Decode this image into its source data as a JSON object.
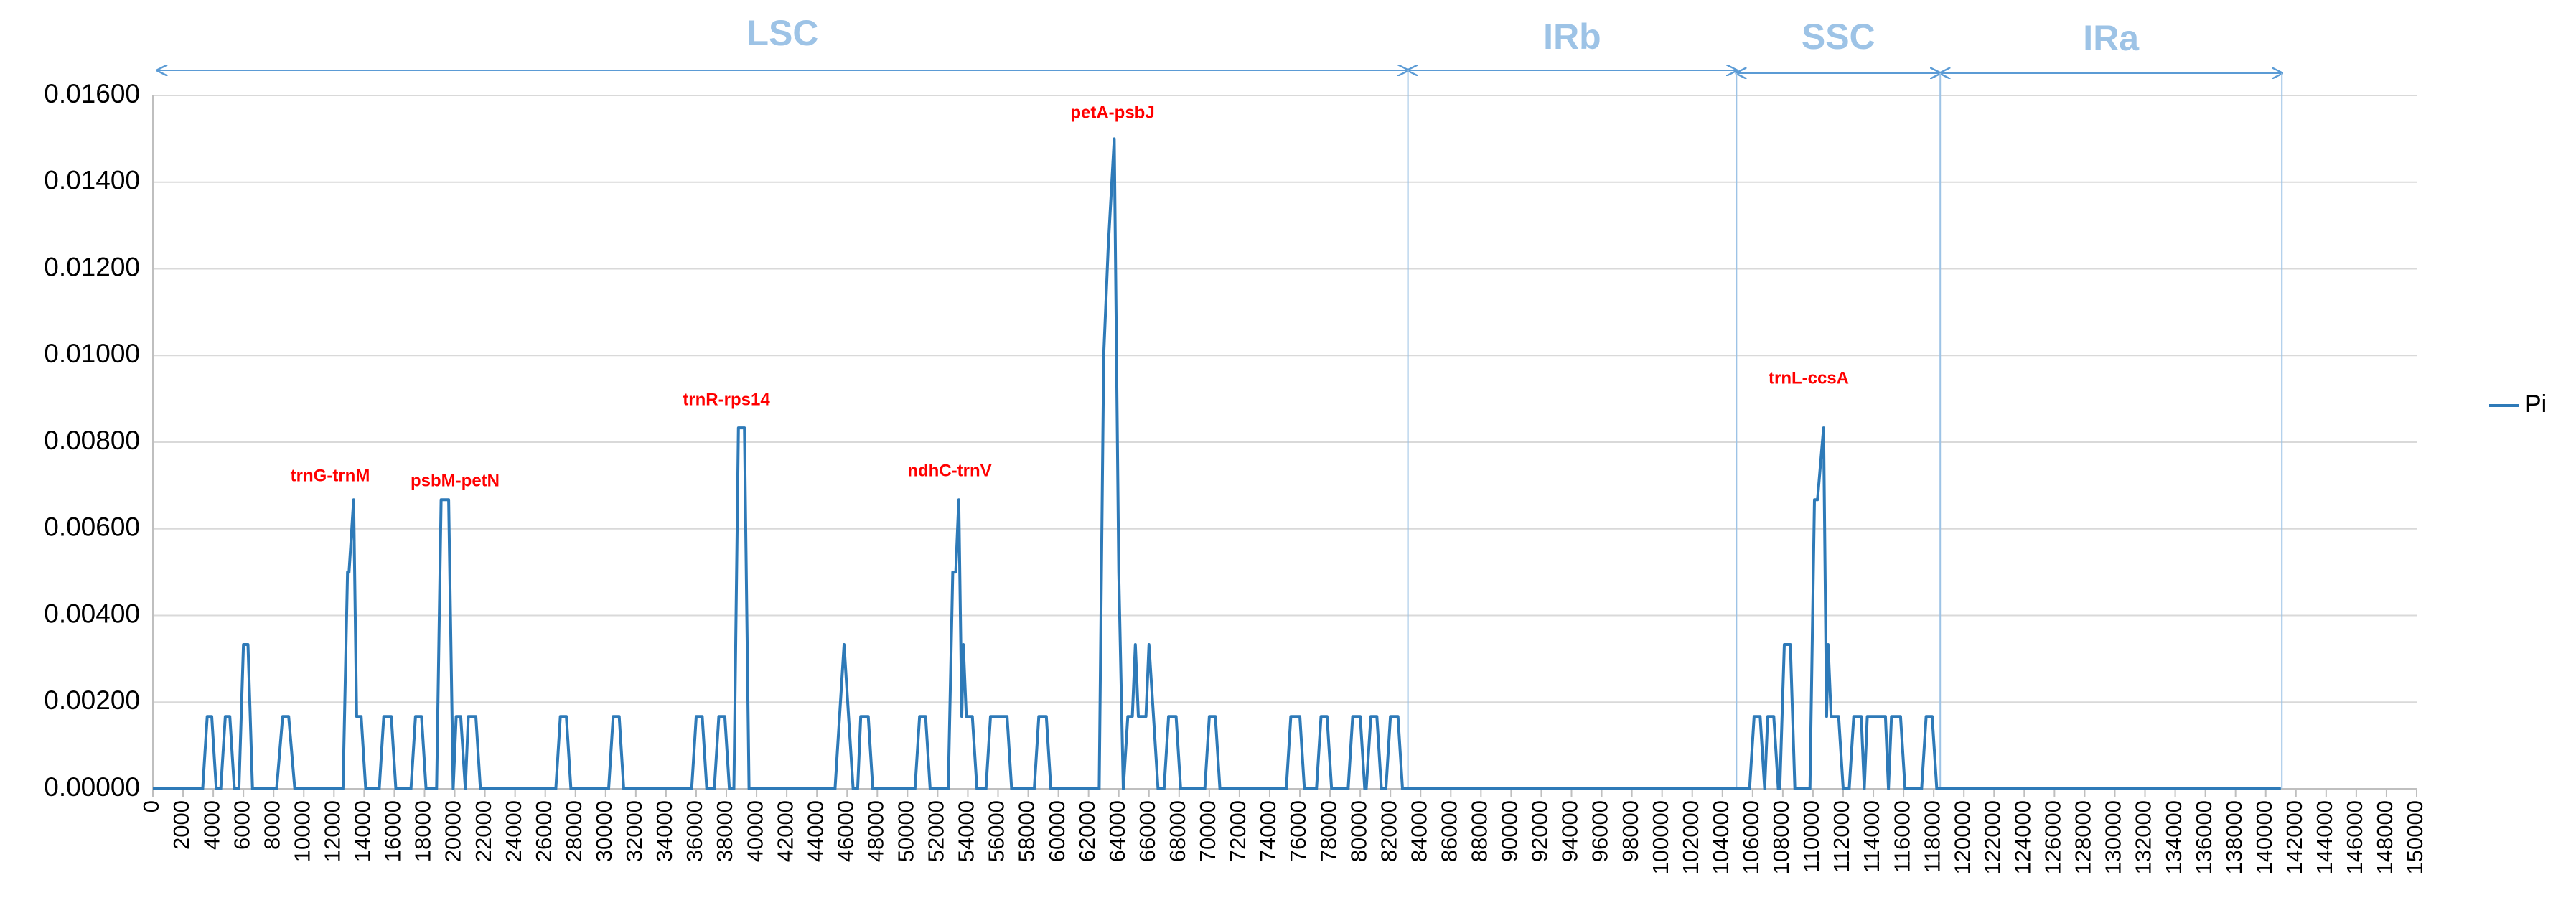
{
  "chart_data": {
    "type": "line",
    "x": [
      0,
      3300,
      3600,
      3900,
      4200,
      4500,
      4800,
      5100,
      5400,
      5700,
      6000,
      6300,
      6600,
      8200,
      8600,
      9000,
      9400,
      12600,
      12900,
      13000,
      13300,
      13500,
      13800,
      14100,
      15000,
      15300,
      15800,
      16100,
      17100,
      17400,
      17800,
      18100,
      18800,
      19100,
      19600,
      19900,
      20100,
      20400,
      20700,
      20900,
      21400,
      21700,
      26700,
      27000,
      27400,
      27700,
      30200,
      30500,
      30900,
      31200,
      35700,
      36000,
      36400,
      36700,
      37200,
      37500,
      37900,
      38200,
      38500,
      38800,
      39200,
      39500,
      45200,
      45500,
      45800,
      46100,
      46400,
      46700,
      46900,
      47400,
      47700,
      50500,
      50800,
      51200,
      51500,
      52700,
      53000,
      53200,
      53400,
      53600,
      53700,
      53900,
      54300,
      54600,
      55200,
      55500,
      56600,
      56900,
      58400,
      58700,
      59200,
      59500,
      62700,
      63000,
      63300,
      63700,
      64000,
      64300,
      64600,
      64900,
      65100,
      65300,
      65800,
      66000,
      66300,
      66600,
      67000,
      67300,
      67800,
      68100,
      69700,
      70000,
      70400,
      70700,
      75100,
      75400,
      76000,
      76300,
      77100,
      77400,
      77800,
      78100,
      79200,
      79500,
      80000,
      80300,
      80400,
      80700,
      81100,
      81400,
      81700,
      82000,
      82500,
      82800,
      105800,
      106100,
      106500,
      106800,
      107000,
      107400,
      107700,
      107800,
      108100,
      108500,
      108800,
      109800,
      110100,
      110300,
      110700,
      110900,
      111000,
      111200,
      111700,
      112000,
      112400,
      112700,
      113200,
      113400,
      113600,
      114800,
      115000,
      115200,
      115800,
      116100,
      117200,
      117500,
      117900,
      118200,
      141000
    ],
    "series": [
      {
        "name": "Pi",
        "color": "#2e7ab8",
        "values": [
          0,
          0,
          0.00167,
          0.00167,
          0,
          0,
          0.00167,
          0.00167,
          0,
          0,
          0.00333,
          0.00333,
          0,
          0,
          0.00167,
          0.00167,
          0,
          0,
          0.005,
          0.005,
          0.00667,
          0.00167,
          0.00167,
          0,
          0,
          0.00167,
          0.00167,
          0,
          0,
          0.00167,
          0.00167,
          0,
          0,
          0.00667,
          0.00667,
          0,
          0.00167,
          0.00167,
          0,
          0.00167,
          0.00167,
          0,
          0,
          0.00167,
          0.00167,
          0,
          0,
          0.00167,
          0.00167,
          0,
          0,
          0.00167,
          0.00167,
          0,
          0,
          0.00167,
          0.00167,
          0,
          0,
          0.00833,
          0.00833,
          0,
          0,
          0.00167,
          0.00333,
          0.00167,
          0,
          0,
          0.00167,
          0.00167,
          0,
          0,
          0.00167,
          0.00167,
          0,
          0,
          0.005,
          0.005,
          0.00667,
          0.00167,
          0.00333,
          0.00167,
          0.00167,
          0,
          0,
          0.00167,
          0.00167,
          0,
          0,
          0.00167,
          0.00167,
          0,
          0,
          0.01,
          0.0125,
          0.015,
          0.005,
          0,
          0.00167,
          0.00167,
          0.00333,
          0.00167,
          0.00167,
          0.00333,
          0.00167,
          0,
          0,
          0.00167,
          0.00167,
          0,
          0,
          0.00167,
          0.00167,
          0,
          0,
          0.00167,
          0.00167,
          0,
          0,
          0.00167,
          0.00167,
          0,
          0,
          0.00167,
          0.00167,
          0,
          0,
          0.00167,
          0.00167,
          0,
          0,
          0.00167,
          0.00167,
          0,
          0,
          0.00167,
          0.00167,
          0,
          0.00167,
          0.00167,
          0,
          0,
          0.00333,
          0.00333,
          0,
          0,
          0.00667,
          0.00667,
          0.00833,
          0.00167,
          0.00333,
          0.00167,
          0.00167,
          0,
          0,
          0.00167,
          0.00167,
          0,
          0.00167,
          0.00167,
          0,
          0.00167,
          0.00167,
          0,
          0,
          0.00167,
          0.00167,
          0,
          0
        ]
      }
    ],
    "xlim": [
      0,
      150000
    ],
    "xticks": [
      0,
      2000,
      4000,
      6000,
      8000,
      10000,
      12000,
      14000,
      16000,
      18000,
      20000,
      22000,
      24000,
      26000,
      28000,
      30000,
      32000,
      34000,
      36000,
      38000,
      40000,
      42000,
      44000,
      46000,
      48000,
      50000,
      52000,
      54000,
      56000,
      58000,
      60000,
      62000,
      64000,
      66000,
      68000,
      70000,
      72000,
      74000,
      76000,
      78000,
      80000,
      82000,
      84000,
      86000,
      88000,
      90000,
      92000,
      94000,
      96000,
      98000,
      100000,
      102000,
      104000,
      106000,
      108000,
      110000,
      112000,
      114000,
      116000,
      118000,
      120000,
      122000,
      124000,
      126000,
      128000,
      130000,
      132000,
      134000,
      136000,
      138000,
      140000,
      142000,
      144000,
      146000,
      148000,
      150000
    ],
    "ylim": [
      0,
      0.016
    ],
    "yticks": [
      {
        "value": 0,
        "label": "0.00000"
      },
      {
        "value": 0.002,
        "label": "0.00200"
      },
      {
        "value": 0.004,
        "label": "0.00400"
      },
      {
        "value": 0.006,
        "label": "0.00600"
      },
      {
        "value": 0.008,
        "label": "0.00800"
      },
      {
        "value": 0.01,
        "label": "0.01000"
      },
      {
        "value": 0.012,
        "label": "0.01200"
      },
      {
        "value": 0.014,
        "label": "0.01400"
      },
      {
        "value": 0.016,
        "label": "0.01600"
      }
    ],
    "grid": true,
    "legend": "right",
    "regions": [
      {
        "label": "LSC",
        "start": 300,
        "end": 83160
      },
      {
        "label": "IRb",
        "start": 83160,
        "end": 104930
      },
      {
        "label": "SSC",
        "start": 104930,
        "end": 118430
      },
      {
        "label": "IRa",
        "start": 118430,
        "end": 141070
      }
    ],
    "annotations": [
      "trnG-trnM",
      "psbM-petN",
      "trnR-rps14",
      "ndhC-trnV",
      "petA-psbJ",
      "trnL-ccsA"
    ]
  }
}
